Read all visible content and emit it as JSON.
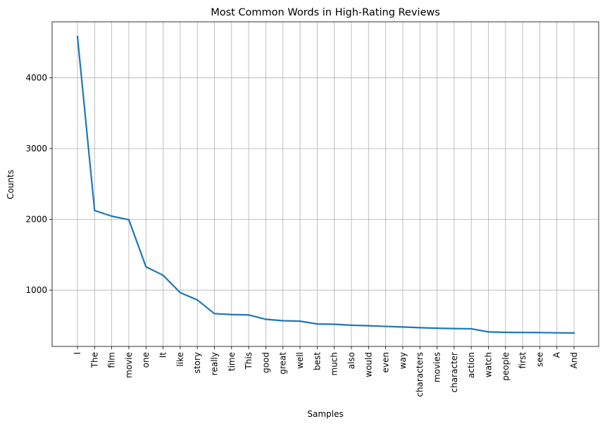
{
  "chart_data": {
    "type": "line",
    "title": "Most Common Words in High-Rating Reviews",
    "xlabel": "Samples",
    "ylabel": "Counts",
    "categories": [
      "I",
      "The",
      "film",
      "movie",
      "one",
      "It",
      "like",
      "story",
      "really",
      "time",
      "This",
      "good",
      "great",
      "well",
      "best",
      "much",
      "also",
      "would",
      "even",
      "way",
      "characters",
      "movies",
      "character",
      "action",
      "watch",
      "people",
      "first",
      "see",
      "A",
      "And"
    ],
    "series": [
      {
        "values": [
          4580,
          2125,
          2045,
          1995,
          1330,
          1210,
          965,
          862,
          668,
          655,
          650,
          588,
          568,
          562,
          522,
          518,
          505,
          497,
          488,
          480,
          470,
          462,
          457,
          454,
          410,
          404,
          402,
          401,
          397,
          395
        ],
        "color": "#1f77b4"
      }
    ],
    "ylim": [
      205,
      4790
    ],
    "yticks": [
      1000,
      2000,
      3000,
      4000
    ],
    "grid": true,
    "legend": "none"
  }
}
